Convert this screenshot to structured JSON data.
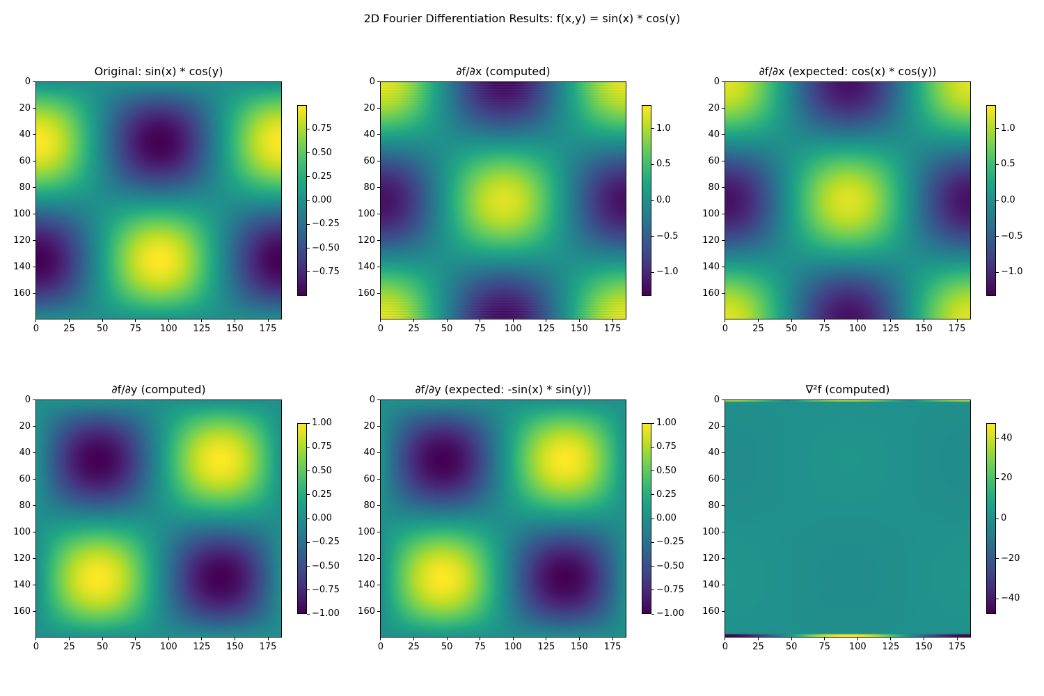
{
  "suptitle": "2D Fourier Differentiation Results: f(x,y) = sin(x) * cos(y)",
  "colormap": "viridis",
  "chart_data": [
    {
      "type": "heatmap",
      "title": "Original: sin(x) * cos(y)",
      "shape": [
        180,
        186
      ],
      "amplitude": 1,
      "phase_x_deg": 0,
      "phase_y_deg": -90,
      "vmin": -1,
      "vmax": 1,
      "xticks": [
        0,
        25,
        50,
        75,
        100,
        125,
        150,
        175
      ],
      "yticks": [
        0,
        20,
        40,
        60,
        80,
        100,
        120,
        140,
        160
      ],
      "cbar_ticks": [
        0.75,
        0.5,
        0.25,
        0.0,
        -0.25,
        -0.5,
        -0.75
      ],
      "cbar_labels": [
        "0.75",
        "0.50",
        "0.25",
        "0.00",
        "−0.25",
        "−0.50",
        "−0.75"
      ]
    },
    {
      "type": "heatmap",
      "title": "∂f/∂x (computed)",
      "shape": [
        180,
        186
      ],
      "amplitude": 1.2,
      "phase_x_deg": 0,
      "phase_y_deg": 0,
      "vmin": -1.33,
      "vmax": 1.33,
      "edge_ripple": 0.15,
      "xticks": [
        0,
        25,
        50,
        75,
        100,
        125,
        150,
        175
      ],
      "yticks": [
        0,
        20,
        40,
        60,
        80,
        100,
        120,
        140,
        160
      ],
      "cbar_ticks": [
        1.0,
        0.5,
        0.0,
        -0.5,
        -1.0
      ],
      "cbar_labels": [
        "1.0",
        "0.5",
        "0.0",
        "−0.5",
        "−1.0"
      ]
    },
    {
      "type": "heatmap",
      "title": "∂f/∂x (expected: cos(x) * cos(y))",
      "shape": [
        180,
        186
      ],
      "amplitude": 1.2,
      "phase_x_deg": 0,
      "phase_y_deg": 0,
      "vmin": -1.33,
      "vmax": 1.33,
      "xticks": [
        0,
        25,
        50,
        75,
        100,
        125,
        150,
        175
      ],
      "yticks": [
        0,
        20,
        40,
        60,
        80,
        100,
        120,
        140,
        160
      ],
      "cbar_ticks": [
        1.0,
        0.5,
        0.0,
        -0.5,
        -1.0
      ],
      "cbar_labels": [
        "1.0",
        "0.5",
        "0.0",
        "−0.5",
        "−1.0"
      ]
    },
    {
      "type": "heatmap",
      "title": "∂f/∂y (computed)",
      "shape": [
        180,
        186
      ],
      "amplitude": -1,
      "phase_x_deg": -90,
      "phase_y_deg": -90,
      "vmin": -1,
      "vmax": 1,
      "xticks": [
        0,
        25,
        50,
        75,
        100,
        125,
        150,
        175
      ],
      "yticks": [
        0,
        20,
        40,
        60,
        80,
        100,
        120,
        140,
        160
      ],
      "cbar_ticks": [
        1.0,
        0.75,
        0.5,
        0.25,
        0.0,
        -0.25,
        -0.5,
        -0.75,
        -1.0
      ],
      "cbar_labels": [
        "1.00",
        "0.75",
        "0.50",
        "0.25",
        "0.00",
        "−0.25",
        "−0.50",
        "−0.75",
        "−1.00"
      ]
    },
    {
      "type": "heatmap",
      "title": "∂f/∂y (expected: -sin(x) * sin(y))",
      "shape": [
        180,
        186
      ],
      "amplitude": -1,
      "phase_x_deg": -90,
      "phase_y_deg": -90,
      "vmin": -1,
      "vmax": 1,
      "xticks": [
        0,
        25,
        50,
        75,
        100,
        125,
        150,
        175
      ],
      "yticks": [
        0,
        20,
        40,
        60,
        80,
        100,
        120,
        140,
        160
      ],
      "cbar_ticks": [
        1.0,
        0.75,
        0.5,
        0.25,
        0.0,
        -0.25,
        -0.5,
        -0.75,
        -1.0
      ],
      "cbar_labels": [
        "1.00",
        "0.75",
        "0.50",
        "0.25",
        "0.00",
        "−0.25",
        "−0.50",
        "−0.75",
        "−1.00"
      ]
    },
    {
      "type": "heatmap",
      "title": "∇²f (computed)",
      "shape": [
        180,
        186
      ],
      "amplitude": -2,
      "phase_x_deg": 0,
      "phase_y_deg": -90,
      "vmin": -47.6,
      "vmax": 47.6,
      "edge_top_value": 40,
      "edge_bottom_amplitude": 47,
      "xticks": [
        0,
        25,
        50,
        75,
        100,
        125,
        150,
        175
      ],
      "yticks": [
        0,
        20,
        40,
        60,
        80,
        100,
        120,
        140,
        160
      ],
      "cbar_ticks": [
        40,
        20,
        0,
        -20,
        -40
      ],
      "cbar_labels": [
        "40",
        "20",
        "0",
        "−20",
        "−40"
      ]
    }
  ]
}
